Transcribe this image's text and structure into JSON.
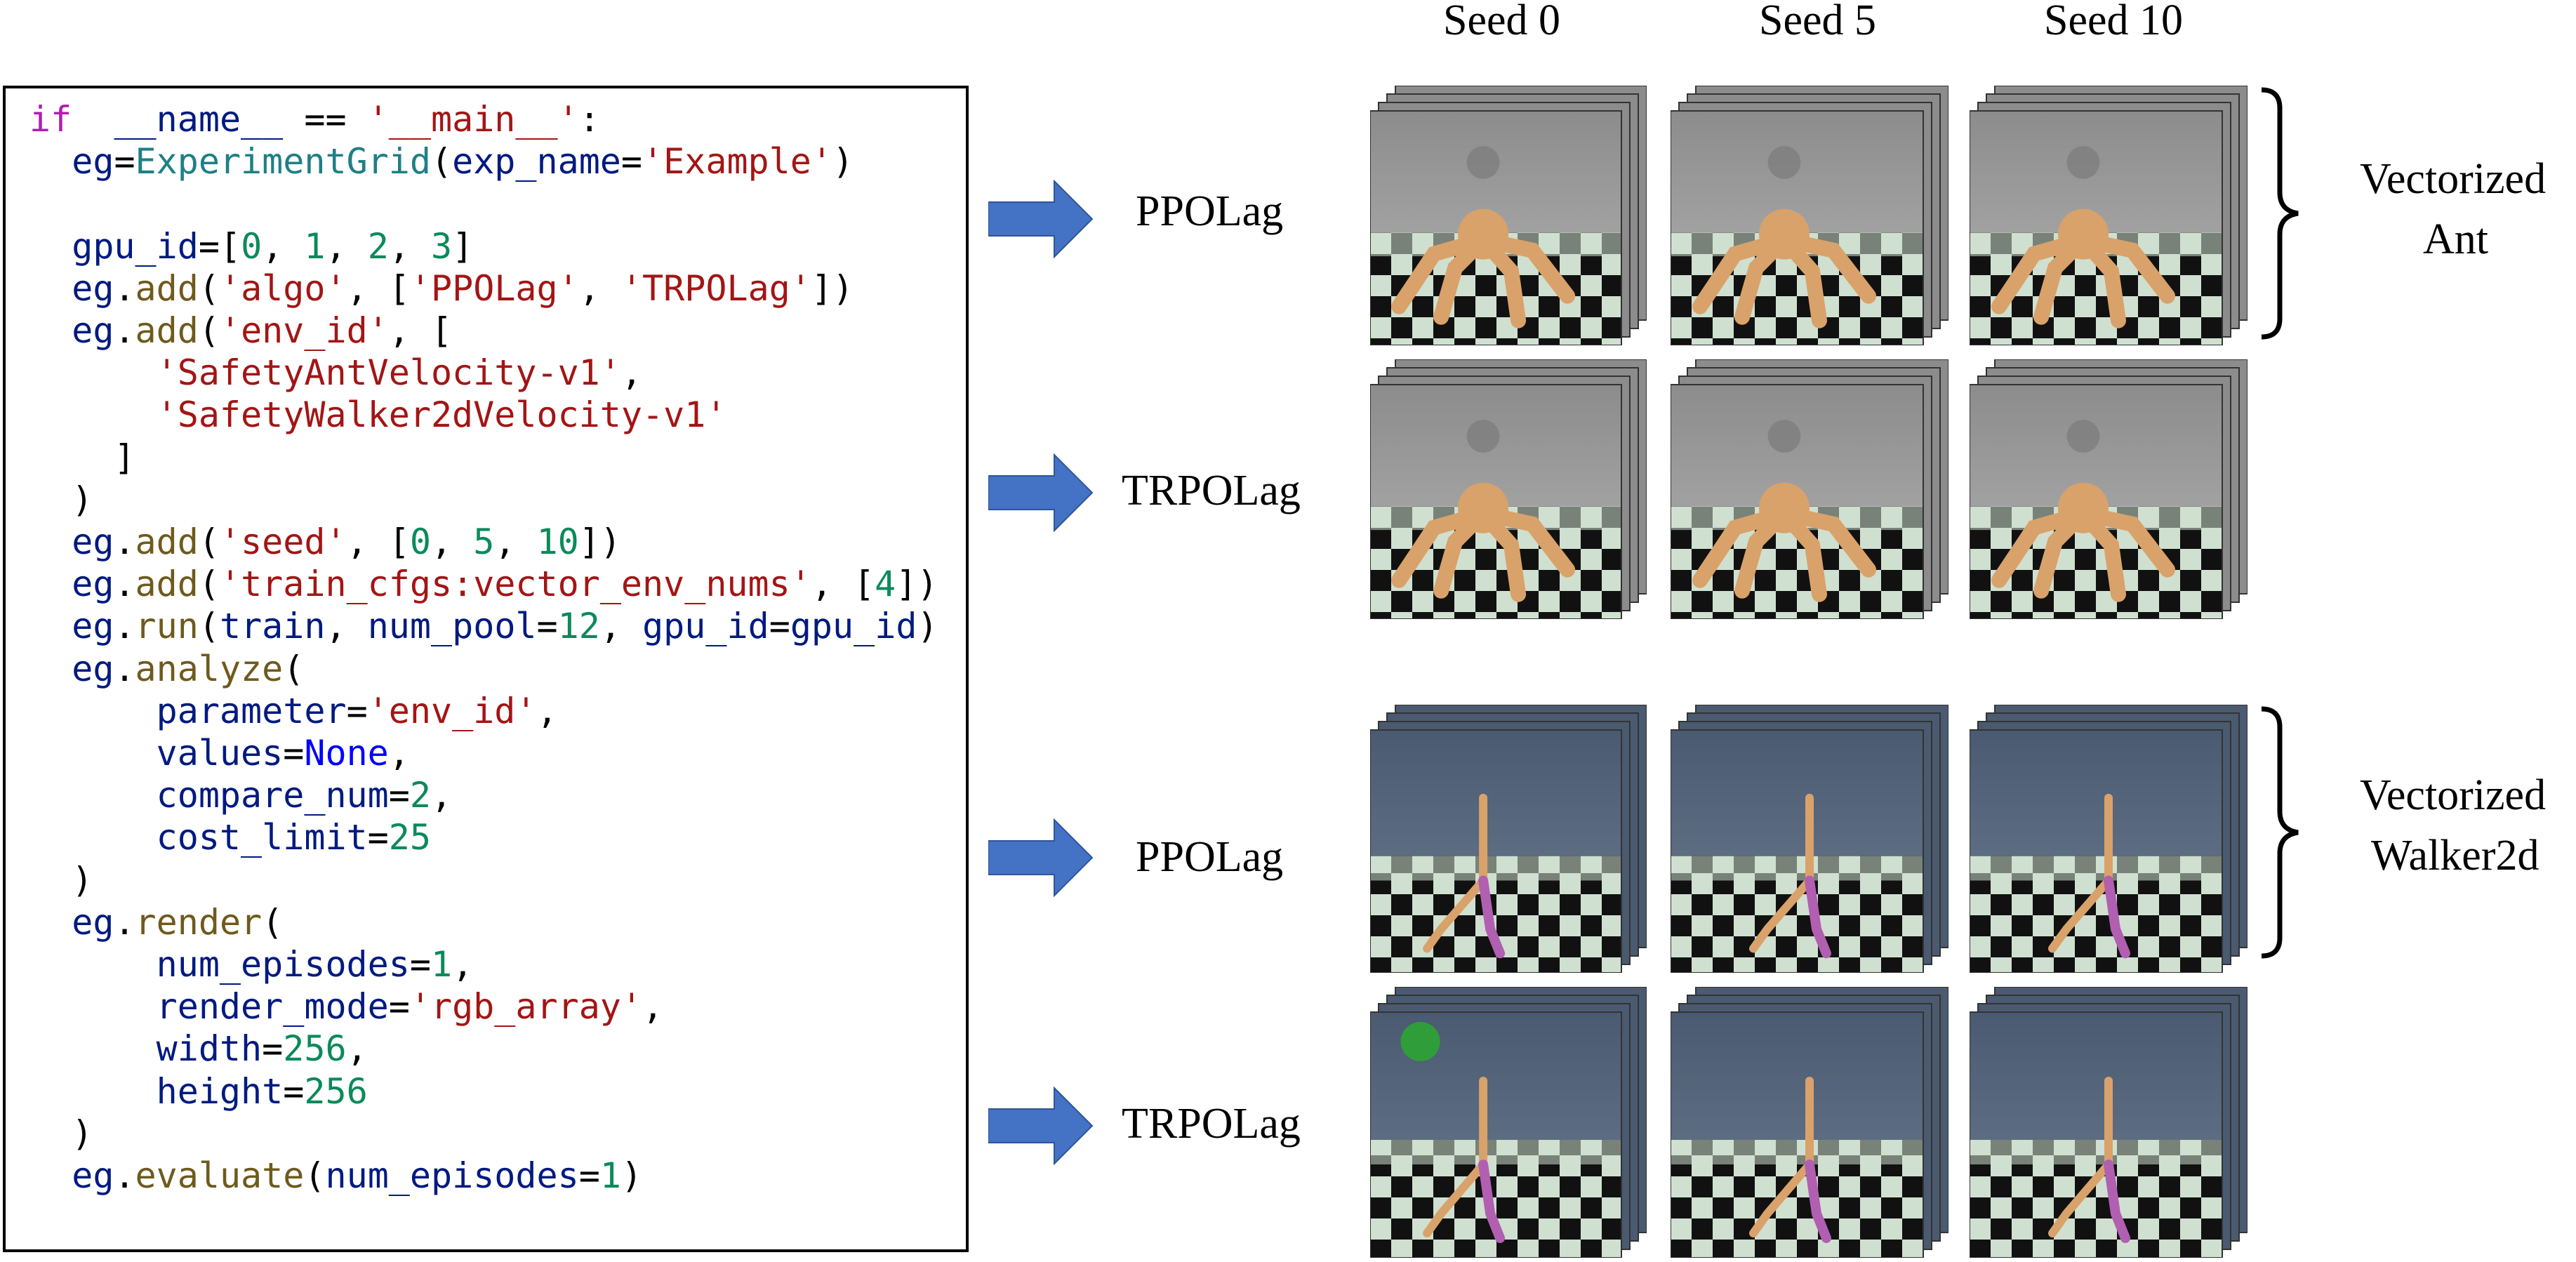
{
  "seed_headers": [
    "Seed 0",
    "Seed 5",
    "Seed 10"
  ],
  "algorithms": [
    "PPOLag",
    "TRPOLag"
  ],
  "env_labels": {
    "ant": [
      "Vectorized",
      "Ant"
    ],
    "walker": [
      "Vectorized",
      "Walker2d"
    ]
  },
  "colors": {
    "arrow": "#4472c4",
    "ant_sky": "#8c8c8c",
    "walker_sky": "#4a5a70",
    "floor_light": "#cfe0d0",
    "ant_body": "#d9a26a",
    "walker_leg": "#b15fb0"
  },
  "code": [
    [
      [
        "kw",
        "if"
      ],
      [
        "",
        "  "
      ],
      [
        "id",
        "__name__"
      ],
      [
        "",
        " == "
      ],
      [
        "str",
        "'__main__'"
      ],
      [
        "",
        ":"
      ]
    ],
    [
      [
        "",
        "  "
      ],
      [
        "id",
        "eg"
      ],
      [
        "",
        "="
      ],
      [
        "cls",
        "ExperimentGrid"
      ],
      [
        "",
        "("
      ],
      [
        "id",
        "exp_name"
      ],
      [
        "",
        "="
      ],
      [
        "str",
        "'Example'"
      ],
      [
        "",
        ")"
      ]
    ],
    [],
    [
      [
        "",
        "  "
      ],
      [
        "id",
        "gpu_id"
      ],
      [
        "",
        "=["
      ],
      [
        "num",
        "0"
      ],
      [
        "",
        ", "
      ],
      [
        "num",
        "1"
      ],
      [
        "",
        ", "
      ],
      [
        "num",
        "2"
      ],
      [
        "",
        ", "
      ],
      [
        "num",
        "3"
      ],
      [
        "",
        "]"
      ]
    ],
    [
      [
        "",
        "  "
      ],
      [
        "id",
        "eg"
      ],
      [
        "",
        "."
      ],
      [
        "fn",
        "add"
      ],
      [
        "",
        "("
      ],
      [
        "str",
        "'algo'"
      ],
      [
        "",
        ", ["
      ],
      [
        "str",
        "'PPOLag'"
      ],
      [
        "",
        ", "
      ],
      [
        "str",
        "'TRPOLag'"
      ],
      [
        "",
        "])"
      ]
    ],
    [
      [
        "",
        "  "
      ],
      [
        "id",
        "eg"
      ],
      [
        "",
        "."
      ],
      [
        "fn",
        "add"
      ],
      [
        "",
        "("
      ],
      [
        "str",
        "'env_id'"
      ],
      [
        "",
        ", ["
      ]
    ],
    [
      [
        "",
        "      "
      ],
      [
        "str",
        "'SafetyAntVelocity-v1'"
      ],
      [
        "",
        ","
      ]
    ],
    [
      [
        "",
        "      "
      ],
      [
        "str",
        "'SafetyWalker2dVelocity-v1'"
      ]
    ],
    [
      [
        "",
        "    ]"
      ]
    ],
    [
      [
        "",
        "  )"
      ]
    ],
    [
      [
        "",
        "  "
      ],
      [
        "id",
        "eg"
      ],
      [
        "",
        "."
      ],
      [
        "fn",
        "add"
      ],
      [
        "",
        "("
      ],
      [
        "str",
        "'seed'"
      ],
      [
        "",
        ", ["
      ],
      [
        "num",
        "0"
      ],
      [
        "",
        ", "
      ],
      [
        "num",
        "5"
      ],
      [
        "",
        ", "
      ],
      [
        "num",
        "10"
      ],
      [
        "",
        "])"
      ]
    ],
    [
      [
        "",
        "  "
      ],
      [
        "id",
        "eg"
      ],
      [
        "",
        "."
      ],
      [
        "fn",
        "add"
      ],
      [
        "",
        "("
      ],
      [
        "str",
        "'train_cfgs:vector_env_nums'"
      ],
      [
        "",
        ", ["
      ],
      [
        "num",
        "4"
      ],
      [
        "",
        "])"
      ]
    ],
    [
      [
        "",
        "  "
      ],
      [
        "id",
        "eg"
      ],
      [
        "",
        "."
      ],
      [
        "fn",
        "run"
      ],
      [
        "",
        "("
      ],
      [
        "id",
        "train"
      ],
      [
        "",
        ", "
      ],
      [
        "id",
        "num_pool"
      ],
      [
        "",
        "="
      ],
      [
        "num",
        "12"
      ],
      [
        "",
        ", "
      ],
      [
        "id",
        "gpu_id"
      ],
      [
        "",
        "="
      ],
      [
        "id",
        "gpu_id"
      ],
      [
        "",
        ")"
      ]
    ],
    [
      [
        "",
        "  "
      ],
      [
        "id",
        "eg"
      ],
      [
        "",
        "."
      ],
      [
        "fn",
        "analyze"
      ],
      [
        "",
        "("
      ]
    ],
    [
      [
        "",
        "      "
      ],
      [
        "id",
        "parameter"
      ],
      [
        "",
        "="
      ],
      [
        "str",
        "'env_id'"
      ],
      [
        "",
        ","
      ]
    ],
    [
      [
        "",
        "      "
      ],
      [
        "id",
        "values"
      ],
      [
        "",
        "="
      ],
      [
        "bl",
        "None"
      ],
      [
        "",
        ","
      ]
    ],
    [
      [
        "",
        "      "
      ],
      [
        "id",
        "compare_num"
      ],
      [
        "",
        "="
      ],
      [
        "num",
        "2"
      ],
      [
        "",
        ","
      ]
    ],
    [
      [
        "",
        "      "
      ],
      [
        "id",
        "cost_limit"
      ],
      [
        "",
        "="
      ],
      [
        "num",
        "25"
      ]
    ],
    [
      [
        "",
        "  )"
      ]
    ],
    [
      [
        "",
        "  "
      ],
      [
        "id",
        "eg"
      ],
      [
        "",
        "."
      ],
      [
        "fn",
        "render"
      ],
      [
        "",
        "("
      ]
    ],
    [
      [
        "",
        "      "
      ],
      [
        "id",
        "num_episodes"
      ],
      [
        "",
        "="
      ],
      [
        "num",
        "1"
      ],
      [
        "",
        ","
      ]
    ],
    [
      [
        "",
        "      "
      ],
      [
        "id",
        "render_mode"
      ],
      [
        "",
        "="
      ],
      [
        "str",
        "'rgb_array'"
      ],
      [
        "",
        ","
      ]
    ],
    [
      [
        "",
        "      "
      ],
      [
        "id",
        "width"
      ],
      [
        "",
        "="
      ],
      [
        "num",
        "256"
      ],
      [
        "",
        ","
      ]
    ],
    [
      [
        "",
        "      "
      ],
      [
        "id",
        "height"
      ],
      [
        "",
        "="
      ],
      [
        "num",
        "256"
      ]
    ],
    [
      [
        "",
        "  )"
      ]
    ],
    [
      [
        "",
        "  "
      ],
      [
        "id",
        "eg"
      ],
      [
        "",
        "."
      ],
      [
        "fn",
        "evaluate"
      ],
      [
        "",
        "("
      ],
      [
        "id",
        "num_episodes"
      ],
      [
        "",
        "="
      ],
      [
        "num",
        "1"
      ],
      [
        "",
        ")"
      ]
    ]
  ]
}
